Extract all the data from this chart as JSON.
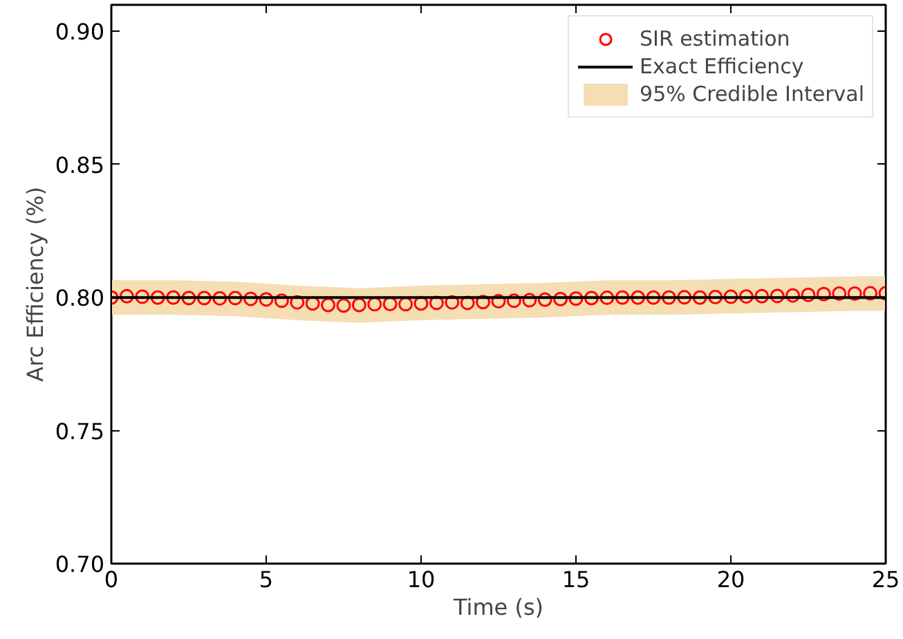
{
  "chart_data": {
    "type": "scatter",
    "xlabel": "Time (s)",
    "ylabel": "Arc Efficiency (%)",
    "xlim": [
      0,
      25
    ],
    "ylim": [
      0.7,
      0.91
    ],
    "xticks": [
      0,
      5,
      10,
      15,
      20,
      25
    ],
    "yticks": [
      {
        "value": 0.7,
        "label": "0.70"
      },
      0.75,
      {
        "value": 0.8,
        "label": "0.80"
      },
      0.85,
      {
        "value": 0.9,
        "label": "0.90"
      }
    ],
    "legend": "top right",
    "grid": false,
    "series": [
      {
        "name": "95% Credible Interval",
        "type": "area",
        "color": "#f5deb3",
        "x": [
          0,
          2,
          4,
          6,
          8,
          10,
          12,
          14,
          16,
          18,
          20,
          22,
          24,
          25
        ],
        "values": [
          null,
          null,
          null,
          null,
          null,
          null,
          null,
          null,
          null,
          null,
          null,
          null,
          null,
          null
        ],
        "upper": [
          0.8065,
          0.8065,
          0.806,
          0.8045,
          0.8035,
          0.8045,
          0.805,
          0.8055,
          0.8065,
          0.8065,
          0.807,
          0.8075,
          0.808,
          0.808
        ],
        "lower": [
          0.7935,
          0.7935,
          0.793,
          0.7915,
          0.7905,
          0.7915,
          0.792,
          0.7925,
          0.7935,
          0.7935,
          0.794,
          0.7945,
          0.795,
          0.795
        ]
      },
      {
        "name": "SIR estimation",
        "type": "scatter",
        "marker": "circle",
        "color": "#ff0000",
        "x": [
          0,
          0.5,
          1,
          1.5,
          2,
          2.5,
          3,
          3.5,
          4,
          4.5,
          5,
          5.5,
          6,
          6.5,
          7,
          7.5,
          8,
          8.5,
          9,
          9.5,
          10,
          10.5,
          11,
          11.5,
          12,
          12.5,
          13,
          13.5,
          14,
          14.5,
          15,
          15.5,
          16,
          16.5,
          17,
          17.5,
          18,
          18.5,
          19,
          19.5,
          20,
          20.5,
          21,
          21.5,
          22,
          22.5,
          23,
          23.5,
          24,
          24.5,
          25
        ],
        "values": [
          0.8,
          0.8005,
          0.8003,
          0.8,
          0.8,
          0.7998,
          0.7998,
          0.7997,
          0.7998,
          0.7995,
          0.7993,
          0.7988,
          0.7982,
          0.7978,
          0.7972,
          0.797,
          0.7972,
          0.7975,
          0.7976,
          0.7975,
          0.7978,
          0.798,
          0.7982,
          0.798,
          0.7983,
          0.7986,
          0.7988,
          0.799,
          0.7992,
          0.7994,
          0.7996,
          0.7998,
          0.7999,
          0.8,
          0.8,
          0.8,
          0.8,
          0.8001,
          0.8,
          0.8002,
          0.8003,
          0.8004,
          0.8005,
          0.8006,
          0.8008,
          0.801,
          0.8013,
          0.8015,
          0.8015,
          0.8016,
          0.8016
        ]
      },
      {
        "name": "Exact Efficiency",
        "type": "line",
        "line_style": "solid",
        "color": "#000000",
        "x": [
          0,
          25
        ],
        "values": [
          0.8,
          0.8
        ]
      }
    ]
  }
}
